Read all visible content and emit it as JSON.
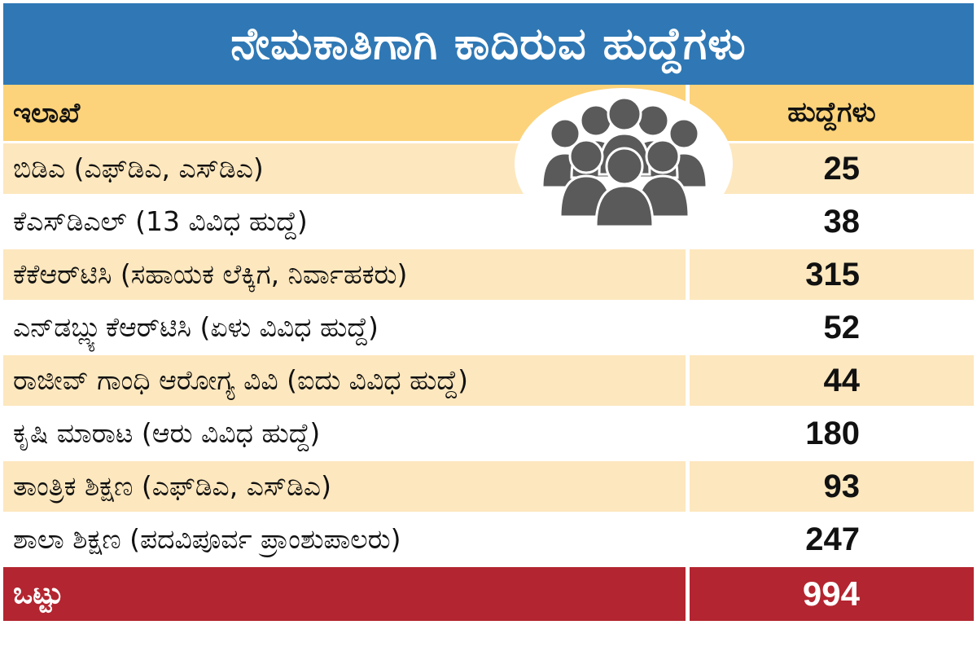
{
  "title": "ನೇಮಕಾತಿಗಾಗಿ ಕಾದಿರುವ ಹುದ್ದೆಗಳು",
  "icons": {
    "people": "group-of-people-icon"
  },
  "colors": {
    "title_bg": "#2f78b5",
    "header_bg": "#fcd37a",
    "row_alt_bg": "#fde7be",
    "total_bg": "#b32530",
    "icon_gray": "#5a5a5a"
  },
  "chart_data": {
    "type": "table",
    "columns": [
      "ಇಲಾಖೆ",
      "ಹುದ್ದೆಗಳು"
    ],
    "rows": [
      {
        "department": "ಬಿಡಿಎ (ಎಫ್‌ಡಿಎ, ಎಸ್‌ಡಿಎ)",
        "posts": "25"
      },
      {
        "department": "ಕೆಎಸ್‌ಡಿಎಲ್ (13 ವಿವಿಧ ಹುದ್ದೆ)",
        "posts": "38"
      },
      {
        "department": "ಕೆಕೆಆರ್‌ಟಿಸಿ (ಸಹಾಯಕ ಲೆಕ್ಕಿಗ, ನಿರ್ವಾಹಕರು)",
        "posts": "315"
      },
      {
        "department": "ಎನ್‌ಡಬ್ಲ್ಯುಕೆಆರ್‌ಟಿಸಿ (ಏಳು ವಿವಿಧ ಹುದ್ದೆ)",
        "posts": "52"
      },
      {
        "department": "ರಾಜೀವ್ ಗಾಂಧಿ ಆರೋಗ್ಯ ವಿವಿ (ಐದು ವಿವಿಧ ಹುದ್ದೆ)",
        "posts": "44"
      },
      {
        "department": "ಕೃಷಿ ಮಾರಾಟ (ಆರು ವಿವಿಧ ಹುದ್ದೆ)",
        "posts": "180"
      },
      {
        "department": "ತಾಂತ್ರಿಕ ಶಿಕ್ಷಣ (ಎಫ್‌ಡಿಎ, ಎಸ್‌ಡಿಎ)",
        "posts": "93"
      },
      {
        "department": "ಶಾಲಾ ಶಿಕ್ಷಣ (ಪದವಿಪೂರ್ವ ಪ್ರಾಂಶುಪಾಲರು)",
        "posts": "247"
      }
    ],
    "total": {
      "label": "ಒಟ್ಟು",
      "posts": "994"
    }
  }
}
